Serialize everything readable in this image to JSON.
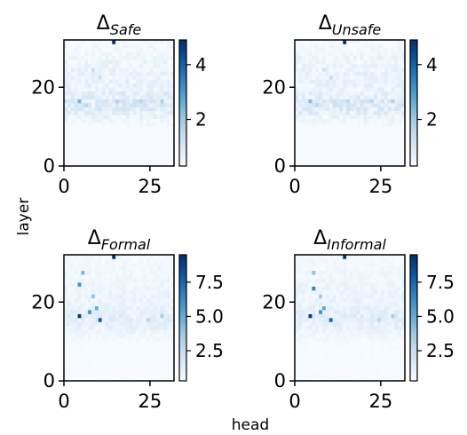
{
  "figure": {
    "xlabel": "head",
    "ylabel": "layer"
  },
  "chart_data": [
    {
      "type": "heatmap",
      "title_symbol": "Δ",
      "title_subscript": "Safe",
      "rows": 32,
      "cols": 32,
      "xlim": [
        0,
        32
      ],
      "ylim": [
        0,
        32
      ],
      "xticks": [
        0,
        25
      ],
      "yticks": [
        0,
        20
      ],
      "colorbar": {
        "min": 0.3,
        "max": 4.9,
        "ticks": [
          2,
          4
        ],
        "colormap": "Blues"
      },
      "base_rows": [
        0.18,
        0.18,
        0.18,
        0.18,
        0.18,
        0.18,
        0.18,
        0.18,
        0.2,
        0.22,
        0.35,
        0.45,
        0.55,
        0.7,
        0.85,
        0.85,
        0.9,
        0.75,
        0.7,
        0.55,
        0.6,
        0.6,
        0.55,
        0.6,
        0.55,
        0.5,
        0.5,
        0.5,
        0.45,
        0.4,
        0.4,
        0.35
      ],
      "hotspots": [
        [
          31,
          14,
          4.9
        ],
        [
          16,
          4,
          2.4
        ],
        [
          15,
          6,
          1.6
        ],
        [
          16,
          15,
          1.7
        ],
        [
          16,
          22,
          1.6
        ],
        [
          16,
          28,
          1.8
        ],
        [
          22,
          10,
          1.3
        ],
        [
          24,
          8,
          1.2
        ]
      ]
    },
    {
      "type": "heatmap",
      "title_symbol": "Δ",
      "title_subscript": "Unsafe",
      "rows": 32,
      "cols": 32,
      "xlim": [
        0,
        32
      ],
      "ylim": [
        0,
        32
      ],
      "xticks": [
        0,
        25
      ],
      "yticks": [
        0,
        20
      ],
      "colorbar": {
        "min": 0.3,
        "max": 4.9,
        "ticks": [
          2,
          4
        ],
        "colormap": "Blues"
      },
      "base_rows": [
        0.18,
        0.18,
        0.18,
        0.18,
        0.18,
        0.18,
        0.18,
        0.18,
        0.2,
        0.22,
        0.35,
        0.45,
        0.55,
        0.7,
        0.85,
        0.85,
        0.9,
        0.75,
        0.7,
        0.55,
        0.6,
        0.6,
        0.55,
        0.6,
        0.55,
        0.5,
        0.5,
        0.5,
        0.45,
        0.4,
        0.4,
        0.35
      ],
      "hotspots": [
        [
          31,
          14,
          4.9
        ],
        [
          16,
          4,
          2.3
        ],
        [
          15,
          6,
          1.6
        ],
        [
          16,
          15,
          1.6
        ],
        [
          16,
          22,
          1.6
        ],
        [
          16,
          28,
          1.7
        ],
        [
          22,
          10,
          1.3
        ],
        [
          24,
          8,
          1.2
        ]
      ]
    },
    {
      "type": "heatmap",
      "title_symbol": "Δ",
      "title_subscript": "Formal",
      "rows": 32,
      "cols": 32,
      "xlim": [
        0,
        32
      ],
      "ylim": [
        0,
        32
      ],
      "xticks": [
        0,
        25
      ],
      "yticks": [
        0,
        20
      ],
      "colorbar": {
        "min": 0.3,
        "max": 9.5,
        "ticks": [
          2.5,
          5.0,
          7.5
        ],
        "colormap": "Blues"
      },
      "base_rows": [
        0.3,
        0.3,
        0.3,
        0.3,
        0.3,
        0.3,
        0.3,
        0.3,
        0.3,
        0.35,
        0.5,
        0.6,
        0.7,
        0.9,
        1.0,
        1.1,
        1.2,
        1.0,
        0.9,
        0.8,
        0.8,
        0.8,
        0.75,
        0.7,
        0.7,
        0.65,
        0.6,
        0.6,
        0.55,
        0.5,
        0.5,
        0.45
      ],
      "hotspots": [
        [
          31,
          14,
          9.5
        ],
        [
          16,
          4,
          9.2
        ],
        [
          15,
          10,
          8.0
        ],
        [
          17,
          7,
          6.0
        ],
        [
          18,
          9,
          5.0
        ],
        [
          21,
          8,
          4.0
        ],
        [
          24,
          4,
          6.0
        ],
        [
          27,
          5,
          4.5
        ],
        [
          16,
          28,
          3.5
        ],
        [
          15,
          24,
          3.0
        ]
      ]
    },
    {
      "type": "heatmap",
      "title_symbol": "Δ",
      "title_subscript": "Informal",
      "rows": 32,
      "cols": 32,
      "xlim": [
        0,
        32
      ],
      "ylim": [
        0,
        32
      ],
      "xticks": [
        0,
        25
      ],
      "yticks": [
        0,
        20
      ],
      "colorbar": {
        "min": 0.3,
        "max": 9.5,
        "ticks": [
          2.5,
          5.0,
          7.5
        ],
        "colormap": "Blues"
      },
      "base_rows": [
        0.3,
        0.3,
        0.3,
        0.3,
        0.3,
        0.3,
        0.3,
        0.3,
        0.3,
        0.35,
        0.5,
        0.6,
        0.7,
        0.9,
        1.0,
        1.1,
        1.2,
        1.0,
        0.9,
        0.8,
        0.8,
        0.8,
        0.75,
        0.7,
        0.7,
        0.65,
        0.6,
        0.6,
        0.55,
        0.5,
        0.5,
        0.45
      ],
      "hotspots": [
        [
          31,
          14,
          9.5
        ],
        [
          16,
          4,
          9.0
        ],
        [
          15,
          10,
          7.5
        ],
        [
          17,
          7,
          6.0
        ],
        [
          18,
          8,
          5.0
        ],
        [
          21,
          7,
          3.5
        ],
        [
          23,
          5,
          6.5
        ],
        [
          27,
          5,
          4.0
        ],
        [
          16,
          28,
          3.5
        ],
        [
          15,
          24,
          3.0
        ]
      ]
    }
  ]
}
